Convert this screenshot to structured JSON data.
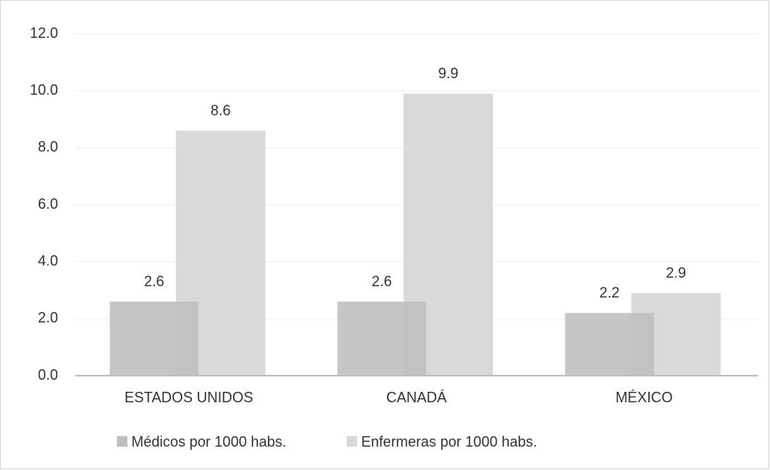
{
  "chart_data": {
    "type": "bar",
    "categories": [
      "ESTADOS UNIDOS",
      "CANADÁ",
      "MÉXICO"
    ],
    "series": [
      {
        "name": "Médicos por 1000 habs.",
        "color": "#bfbfbf",
        "values": [
          2.6,
          2.6,
          2.2
        ]
      },
      {
        "name": "Enfermeras por 1000 habs.",
        "color": "#d9d9d9",
        "values": [
          8.6,
          9.9,
          2.9
        ]
      }
    ],
    "ylim": [
      0,
      12
    ],
    "yticks": [
      {
        "value": 0,
        "label": "0.0"
      },
      {
        "value": 2,
        "label": "2.0"
      },
      {
        "value": 4,
        "label": "4.0"
      },
      {
        "value": 6,
        "label": "6.0"
      },
      {
        "value": 8,
        "label": "8.0"
      },
      {
        "value": 10,
        "label": "10.0"
      },
      {
        "value": 12,
        "label": "12.0"
      }
    ],
    "grid": true,
    "legend": "bottom"
  }
}
